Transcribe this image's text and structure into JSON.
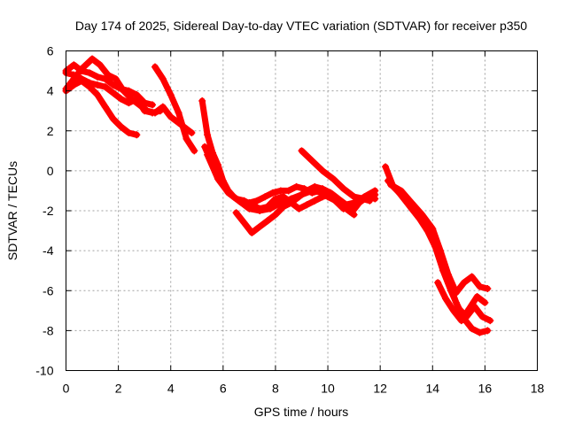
{
  "chart_data": {
    "type": "scatter",
    "title": "Day 174 of 2025, Sidereal Day-to-day VTEC variation (SDTVAR) for receiver p350",
    "xlabel": "GPS time / hours",
    "ylabel": "SDTVAR / TECUs",
    "xlim": [
      0,
      18
    ],
    "ylim": [
      -10,
      6
    ],
    "xticks": [
      0,
      2,
      4,
      6,
      8,
      10,
      12,
      14,
      16,
      18
    ],
    "yticks": [
      -10,
      -8,
      -6,
      -4,
      -2,
      0,
      2,
      4,
      6
    ],
    "grid": true,
    "marker": "+",
    "color": "#ff0000",
    "series": [
      {
        "name": "satellite track 1",
        "x": [
          0.0,
          0.3,
          0.6,
          1.0,
          1.3,
          1.6,
          1.9,
          2.2,
          2.5,
          2.8,
          3.1,
          3.4,
          3.7,
          4.0,
          4.3,
          4.6,
          4.8
        ],
        "y": [
          4.1,
          4.6,
          5.1,
          5.6,
          5.3,
          4.8,
          4.6,
          4.0,
          3.6,
          3.3,
          3.0,
          2.9,
          3.2,
          2.7,
          2.4,
          2.1,
          1.9
        ]
      },
      {
        "name": "satellite track 2",
        "x": [
          0.0,
          0.3,
          0.6,
          0.9,
          1.2,
          1.5,
          1.8,
          2.1,
          2.4,
          2.7,
          3.0,
          3.3,
          3.6
        ],
        "y": [
          4.9,
          4.8,
          4.6,
          4.4,
          4.3,
          4.2,
          3.9,
          3.6,
          3.4,
          3.6,
          3.0,
          2.9,
          3.0
        ]
      },
      {
        "name": "satellite track 3",
        "x": [
          0.0,
          0.3,
          0.6,
          0.9,
          1.2,
          1.5,
          1.8,
          2.1,
          2.4,
          2.7
        ],
        "y": [
          4.0,
          4.3,
          4.5,
          4.2,
          3.8,
          3.2,
          2.6,
          2.2,
          1.9,
          1.8
        ]
      },
      {
        "name": "satellite track 4",
        "x": [
          0.0,
          0.3,
          0.6,
          0.9,
          1.2,
          1.5,
          1.8,
          2.1,
          2.4,
          2.7,
          3.0,
          3.3
        ],
        "y": [
          5.0,
          5.3,
          5.0,
          4.9,
          4.7,
          4.6,
          4.3,
          4.1,
          4.0,
          3.8,
          3.4,
          3.3
        ]
      },
      {
        "name": "satellite track 5",
        "x": [
          3.4,
          3.7,
          4.0,
          4.3,
          4.6,
          4.9
        ],
        "y": [
          5.2,
          4.6,
          3.8,
          2.9,
          1.6,
          1.0
        ]
      },
      {
        "name": "satellite track 6",
        "x": [
          5.2,
          5.4,
          5.6,
          5.8,
          6.0,
          6.2,
          6.4,
          6.7,
          7.0,
          7.3,
          7.6,
          7.9,
          8.2,
          8.5,
          8.8,
          9.1,
          9.4,
          9.7,
          10.0,
          10.3,
          10.6,
          10.9,
          11.2,
          11.5,
          11.8
        ],
        "y": [
          3.5,
          1.8,
          0.9,
          0.3,
          -0.5,
          -1.0,
          -1.3,
          -1.6,
          -1.6,
          -1.5,
          -1.3,
          -1.1,
          -1.0,
          -1.0,
          -0.8,
          -0.9,
          -1.1,
          -1.0,
          -1.3,
          -1.5,
          -1.8,
          -2.1,
          -1.6,
          -1.3,
          -1.4
        ]
      },
      {
        "name": "satellite track 7",
        "x": [
          5.3,
          5.6,
          5.9,
          6.2,
          6.5,
          6.8,
          7.1,
          7.4,
          7.7,
          8.0,
          8.3,
          8.6,
          8.9,
          9.2,
          9.5,
          9.8,
          10.1,
          10.4,
          10.7,
          11.0
        ],
        "y": [
          1.2,
          0.3,
          -0.5,
          -1.1,
          -1.4,
          -1.5,
          -1.7,
          -1.9,
          -1.8,
          -1.4,
          -1.3,
          -1.6,
          -1.9,
          -1.7,
          -1.5,
          -1.3,
          -1.2,
          -1.5,
          -1.9,
          -2.2
        ]
      },
      {
        "name": "satellite track 8",
        "x": [
          5.4,
          5.8,
          6.2,
          6.6,
          7.0,
          7.4,
          7.8,
          8.2,
          8.6,
          9.0,
          9.4,
          9.8,
          10.2,
          10.6,
          11.0,
          11.4,
          11.8
        ],
        "y": [
          0.8,
          -0.4,
          -1.1,
          -1.5,
          -1.9,
          -2.0,
          -1.9,
          -1.6,
          -1.4,
          -1.2,
          -1.0,
          -1.1,
          -1.4,
          -1.9,
          -1.7,
          -1.3,
          -1.0
        ]
      },
      {
        "name": "satellite track 9",
        "x": [
          6.5,
          6.8,
          7.1,
          7.4,
          7.7,
          8.0,
          8.3,
          8.6,
          8.9,
          9.2,
          9.5,
          9.8,
          10.1,
          10.4,
          10.7,
          11.0,
          11.3,
          11.6
        ],
        "y": [
          -2.1,
          -2.6,
          -3.1,
          -2.8,
          -2.5,
          -2.2,
          -1.8,
          -1.6,
          -1.3,
          -1.0,
          -0.8,
          -0.9,
          -1.1,
          -1.4,
          -1.7,
          -1.6,
          -1.4,
          -1.5
        ]
      },
      {
        "name": "satellite track 10",
        "x": [
          9.0,
          9.4,
          9.8,
          10.2,
          10.6,
          11.0,
          11.4,
          11.8
        ],
        "y": [
          1.0,
          0.5,
          0.0,
          -0.4,
          -0.9,
          -1.3,
          -1.4,
          -1.2
        ]
      },
      {
        "name": "satellite track 11",
        "x": [
          12.2,
          12.5,
          12.8,
          13.1,
          13.4,
          13.7,
          14.0,
          14.3,
          14.6,
          14.9,
          15.2,
          15.5,
          15.8,
          16.1
        ],
        "y": [
          0.2,
          -0.8,
          -1.2,
          -1.6,
          -2.0,
          -2.5,
          -3.0,
          -4.5,
          -5.5,
          -6.6,
          -7.4,
          -7.9,
          -8.1,
          -8.0
        ]
      },
      {
        "name": "satellite track 12",
        "x": [
          12.3,
          12.6,
          12.9,
          13.2,
          13.5,
          13.8,
          14.1,
          14.4,
          14.7,
          15.0,
          15.3,
          15.6,
          15.9,
          16.2
        ],
        "y": [
          -0.5,
          -0.9,
          -1.4,
          -1.9,
          -2.4,
          -3.0,
          -3.8,
          -5.0,
          -6.0,
          -6.9,
          -7.3,
          -6.8,
          -7.3,
          -7.5
        ]
      },
      {
        "name": "satellite track 13",
        "x": [
          12.4,
          12.8,
          13.2,
          13.6,
          14.0,
          14.3,
          14.6,
          14.9,
          15.2,
          15.5,
          15.8,
          16.1
        ],
        "y": [
          -0.7,
          -1.0,
          -1.6,
          -2.2,
          -2.9,
          -4.0,
          -5.2,
          -6.1,
          -5.6,
          -5.3,
          -5.8,
          -5.9
        ]
      },
      {
        "name": "satellite track 14",
        "x": [
          14.2,
          14.5,
          14.8,
          15.1,
          15.4,
          15.7,
          16.0
        ],
        "y": [
          -5.6,
          -6.4,
          -7.0,
          -7.5,
          -6.9,
          -6.3,
          -6.6
        ]
      }
    ]
  }
}
